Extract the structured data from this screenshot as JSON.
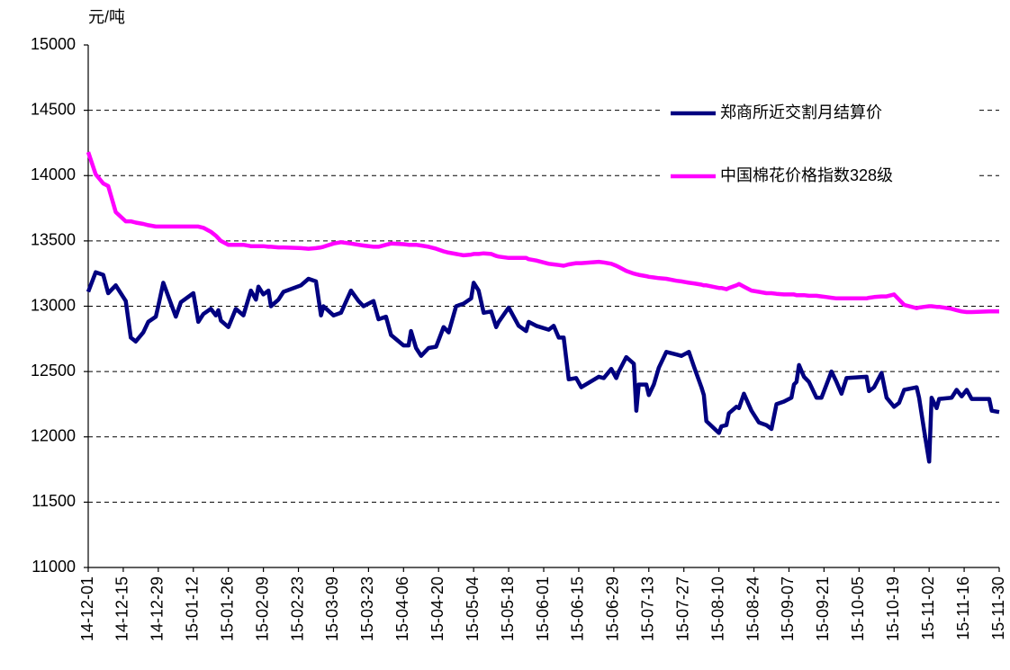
{
  "chart_data": {
    "type": "line",
    "ylabel": "元/吨",
    "x": [
      "14-12-01",
      "14-12-04",
      "14-12-07",
      "14-12-09",
      "14-12-12",
      "14-12-16",
      "14-12-18",
      "14-12-20",
      "14-12-23",
      "14-12-25",
      "14-12-28",
      "14-12-29",
      "14-12-31",
      "15-01-05",
      "15-01-07",
      "15-01-12",
      "15-01-14",
      "15-01-16",
      "15-01-19",
      "15-01-21",
      "15-01-22",
      "15-01-23",
      "15-01-26",
      "15-01-29",
      "15-02-01",
      "15-02-04",
      "15-02-06",
      "15-02-07",
      "15-02-09",
      "15-02-11",
      "15-02-12",
      "15-02-15",
      "15-02-17",
      "15-02-24",
      "15-02-27",
      "15-03-02",
      "15-03-04",
      "15-03-05",
      "15-03-09",
      "15-03-12",
      "15-03-16",
      "15-03-19",
      "15-03-21",
      "15-03-25",
      "15-03-27",
      "15-03-30",
      "15-04-01",
      "15-04-06",
      "15-04-08",
      "15-04-09",
      "15-04-11",
      "15-04-13",
      "15-04-16",
      "15-04-19",
      "15-04-22",
      "15-04-24",
      "15-04-27",
      "15-04-30",
      "15-05-03",
      "15-05-04",
      "15-05-06",
      "15-05-08",
      "15-05-11",
      "15-05-13",
      "15-05-14",
      "15-05-18",
      "15-05-20",
      "15-05-22",
      "15-05-25",
      "15-05-26",
      "15-05-29",
      "15-06-03",
      "15-06-05",
      "15-06-07",
      "15-06-09",
      "15-06-11",
      "15-06-14",
      "15-06-16",
      "15-06-23",
      "15-06-25",
      "15-06-28",
      "15-06-30",
      "15-07-01",
      "15-07-04",
      "15-07-07",
      "15-07-08",
      "15-07-09",
      "15-07-12",
      "15-07-13",
      "15-07-15",
      "15-07-17",
      "15-07-20",
      "15-07-24",
      "15-07-26",
      "15-07-29",
      "15-07-31",
      "15-08-03",
      "15-08-04",
      "15-08-05",
      "15-08-10",
      "15-08-11",
      "15-08-13",
      "15-08-14",
      "15-08-17",
      "15-08-18",
      "15-08-20",
      "15-08-23",
      "15-08-26",
      "15-08-29",
      "15-08-31",
      "15-09-02",
      "15-09-05",
      "15-09-08",
      "15-09-09",
      "15-09-10",
      "15-09-11",
      "15-09-13",
      "15-09-15",
      "15-09-18",
      "15-09-20",
      "15-09-22",
      "15-09-24",
      "15-09-26",
      "15-09-28",
      "15-09-30",
      "15-10-08",
      "15-10-09",
      "15-10-11",
      "15-10-14",
      "15-10-16",
      "15-10-19",
      "15-10-21",
      "15-10-23",
      "15-10-28",
      "15-10-29",
      "15-10-31",
      "15-11-02",
      "15-11-03",
      "15-11-05",
      "15-11-06",
      "15-11-11",
      "15-11-13",
      "15-11-15",
      "15-11-17",
      "15-11-19",
      "15-11-26",
      "15-11-27",
      "15-11-30"
    ],
    "series": [
      {
        "name": "郑商所近交割月结算价",
        "color": "#000080",
        "values": [
          13110,
          13260,
          13240,
          13100,
          13160,
          13040,
          12760,
          12730,
          12800,
          12880,
          12920,
          13000,
          13180,
          12920,
          13030,
          13100,
          12880,
          12940,
          12980,
          12930,
          12970,
          12890,
          12840,
          12980,
          12930,
          13120,
          13050,
          13150,
          13090,
          13120,
          13000,
          13050,
          13110,
          13160,
          13210,
          13190,
          12930,
          13000,
          12930,
          12950,
          13120,
          13040,
          13000,
          13040,
          12900,
          12920,
          12780,
          12700,
          12700,
          12810,
          12680,
          12620,
          12680,
          12690,
          12840,
          12800,
          13000,
          13020,
          13060,
          13180,
          13120,
          12950,
          12960,
          12840,
          12880,
          12990,
          12920,
          12850,
          12810,
          12880,
          12850,
          12820,
          12850,
          12760,
          12760,
          12440,
          12450,
          12380,
          12460,
          12450,
          12520,
          12450,
          12500,
          12610,
          12560,
          12200,
          12400,
          12400,
          12320,
          12400,
          12530,
          12650,
          12630,
          12620,
          12650,
          12540,
          12380,
          12320,
          12120,
          12030,
          12080,
          12090,
          12180,
          12230,
          12220,
          12330,
          12200,
          12110,
          12090,
          12060,
          12250,
          12270,
          12300,
          12400,
          12420,
          12550,
          12460,
          12420,
          12300,
          12300,
          12400,
          12500,
          12420,
          12330,
          12450,
          12460,
          12350,
          12380,
          12490,
          12300,
          12230,
          12260,
          12360,
          12380,
          12300,
          12050,
          11810,
          12300,
          12220,
          12290,
          12300,
          12360,
          12310,
          12360,
          12290,
          12290,
          12200,
          12190
        ]
      },
      {
        "name": "中国棉花价格指数328级",
        "color": "#ff00ff",
        "values": [
          14180,
          14010,
          13940,
          13920,
          13720,
          13650,
          13650,
          13640,
          13630,
          13620,
          13610,
          13610,
          13610,
          13610,
          13610,
          13610,
          13610,
          13600,
          13570,
          13540,
          13520,
          13500,
          13470,
          13470,
          13470,
          13460,
          13460,
          13460,
          13460,
          13455,
          13455,
          13450,
          13450,
          13445,
          13440,
          13445,
          13450,
          13455,
          13480,
          13490,
          13480,
          13470,
          13465,
          13455,
          13455,
          13470,
          13480,
          13475,
          13470,
          13470,
          13470,
          13465,
          13455,
          13440,
          13420,
          13410,
          13400,
          13390,
          13395,
          13400,
          13400,
          13405,
          13400,
          13385,
          13380,
          13370,
          13370,
          13370,
          13370,
          13360,
          13350,
          13325,
          13320,
          13315,
          13310,
          13320,
          13330,
          13330,
          13340,
          13335,
          13325,
          13310,
          13300,
          13270,
          13250,
          13245,
          13240,
          13230,
          13225,
          13220,
          13215,
          13210,
          13195,
          13190,
          13180,
          13175,
          13165,
          13160,
          13160,
          13140,
          13140,
          13130,
          13140,
          13160,
          13170,
          13150,
          13120,
          13110,
          13100,
          13100,
          13095,
          13090,
          13090,
          13090,
          13085,
          13085,
          13085,
          13080,
          13080,
          13075,
          13070,
          13065,
          13060,
          13060,
          13060,
          13060,
          13065,
          13070,
          13075,
          13075,
          13090,
          13050,
          13010,
          12985,
          12990,
          12995,
          13000,
          13000,
          12995,
          12995,
          12980,
          12970,
          12960,
          12955,
          12955,
          12960,
          12960,
          12960
        ]
      }
    ],
    "xlim": [
      "14-12-01",
      "15-11-30"
    ],
    "xticks": [
      "14-12-01",
      "14-12-15",
      "14-12-29",
      "15-01-12",
      "15-01-26",
      "15-02-09",
      "15-02-23",
      "15-03-09",
      "15-03-23",
      "15-04-06",
      "15-04-20",
      "15-05-04",
      "15-05-18",
      "15-06-01",
      "15-06-15",
      "15-06-29",
      "15-07-13",
      "15-07-27",
      "15-08-10",
      "15-08-24",
      "15-09-07",
      "15-09-21",
      "15-10-05",
      "15-10-19",
      "15-11-02",
      "15-11-16",
      "15-11-30"
    ],
    "ylim": [
      11000,
      15000
    ],
    "yticks": [
      11000,
      11500,
      12000,
      12500,
      13000,
      13500,
      14000,
      14500,
      15000
    ],
    "grid": true,
    "legend": "upper right"
  }
}
